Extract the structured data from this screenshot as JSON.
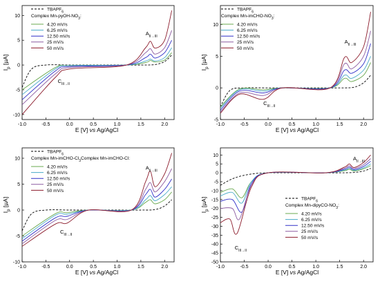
{
  "figure": {
    "x_axis_label": {
      "pre": "E [V] ",
      "italic": "vs",
      "post": " Ag/AgCl"
    }
  },
  "colors": {
    "50 mV/s": "#8b1a2a",
    "25 mV/s": "#8b5aa0",
    "12.50 mV/s": "#3030c8",
    "6.25 mV/s": "#48aac8",
    "4.20 mV/s": "#6aa84f",
    "TBAPF6": "#000000"
  },
  "chart_data": [
    {
      "type": "line",
      "panel": "top-left",
      "ylabel": "Ip [µA]",
      "xlim": [
        -1.0,
        2.2
      ],
      "ylim": [
        -11,
        12
      ],
      "x_ticks": [
        "-1.0",
        "-0.5",
        "0.0",
        "0.5",
        "1.0",
        "1.5",
        "2.0"
      ],
      "y_ticks": [
        "-10",
        "-5",
        "0",
        "5",
        "10"
      ],
      "legend": {
        "reference": "TBAPF6",
        "title": "Complex Mn-pyOH-NO3:",
        "position": "top-left"
      },
      "annotations": [
        {
          "text": "A",
          "sub": "II→III"
        },
        {
          "text": "C",
          "sub": "III→II"
        }
      ],
      "reference": {
        "name": "TBAPF6",
        "x": [
          -1.0,
          -0.8,
          -0.5,
          0.0,
          0.5,
          1.0,
          1.5,
          1.8,
          2.0,
          2.15
        ],
        "y": [
          -4.5,
          -0.8,
          0.0,
          0.0,
          0.0,
          0.0,
          0.0,
          0.1,
          0.7,
          2.0
        ]
      },
      "series": [
        {
          "name": "4.20 mV/s",
          "x": [
            -1.0,
            -0.3,
            0.0,
            1.2,
            1.6,
            1.7,
            1.8,
            2.0,
            2.15
          ],
          "y": [
            -5,
            -0.5,
            -0.1,
            0,
            0.5,
            0.9,
            0.6,
            1.0,
            2.5
          ]
        },
        {
          "name": "6.25 mV/s",
          "x": [
            -1.0,
            -0.3,
            0.0,
            1.2,
            1.6,
            1.7,
            1.8,
            2.0,
            2.15
          ],
          "y": [
            -6,
            -0.8,
            -0.1,
            0,
            0.8,
            1.2,
            0.8,
            1.5,
            3.5
          ]
        },
        {
          "name": "12.50 mV/s",
          "x": [
            -1.0,
            -0.3,
            0.0,
            1.2,
            1.6,
            1.7,
            1.8,
            2.0,
            2.15
          ],
          "y": [
            -7,
            -1.2,
            -0.3,
            0,
            1.5,
            2.2,
            1.4,
            2.5,
            5.0
          ]
        },
        {
          "name": "25 mV/s",
          "x": [
            -1.0,
            -0.3,
            0.0,
            1.2,
            1.6,
            1.7,
            1.8,
            2.0,
            2.15
          ],
          "y": [
            -8,
            -1.8,
            -0.5,
            0,
            2.5,
            3.3,
            2.2,
            3.5,
            7.0
          ]
        },
        {
          "name": "50 mV/s",
          "x": [
            -1.0,
            -0.3,
            0.0,
            1.2,
            1.6,
            1.7,
            1.8,
            2.0,
            2.15
          ],
          "y": [
            -10,
            -2.5,
            -0.8,
            0,
            3.5,
            4.8,
            3.4,
            5.0,
            11.0
          ]
        }
      ]
    },
    {
      "type": "line",
      "panel": "top-right",
      "ylabel": "Ip [µA]",
      "xlim": [
        -1.0,
        2.2
      ],
      "ylim": [
        -5,
        13
      ],
      "x_ticks": [
        "-1.0",
        "-0.5",
        "0.0",
        "0.5",
        "1.0",
        "1.5",
        "2.0"
      ],
      "y_ticks": [
        "-5",
        "0",
        "5",
        "10"
      ],
      "legend": {
        "reference": "TBAPF6",
        "title": "Complex Mn-imCHO-NO3:",
        "position": "top-left"
      },
      "annotations": [
        {
          "text": "A",
          "sub": "II→III"
        },
        {
          "text": "C",
          "sub": "III→II"
        }
      ],
      "reference": {
        "name": "TBAPF6",
        "x": [
          -1.0,
          -0.8,
          -0.5,
          0.0,
          0.5,
          1.0,
          1.5,
          1.8,
          2.0,
          2.15
        ],
        "y": [
          -3.0,
          -0.4,
          0.0,
          0.0,
          0.0,
          0.0,
          0.0,
          0.1,
          0.8,
          2.0
        ]
      },
      "series": [
        {
          "name": "4.20 mV/s",
          "x": [
            -1.0,
            -0.6,
            -0.1,
            0.3,
            1.3,
            1.6,
            1.75,
            2.0,
            2.15
          ],
          "y": [
            -3,
            -0.2,
            -0.3,
            0,
            0,
            1.5,
            1.0,
            2.0,
            4.0
          ]
        },
        {
          "name": "6.25 mV/s",
          "x": [
            -1.0,
            -0.6,
            -0.1,
            0.3,
            1.3,
            1.6,
            1.75,
            2.0,
            2.15
          ],
          "y": [
            -3.2,
            -0.3,
            -0.5,
            0,
            0,
            2.0,
            1.5,
            2.8,
            5.0
          ]
        },
        {
          "name": "12.50 mV/s",
          "x": [
            -1.0,
            -0.6,
            -0.1,
            0.3,
            1.3,
            1.6,
            1.75,
            2.0,
            2.15
          ],
          "y": [
            -3.5,
            -0.5,
            -0.8,
            0,
            0,
            2.8,
            2.3,
            3.8,
            7.0
          ]
        },
        {
          "name": "25 mV/s",
          "x": [
            -1.0,
            -0.6,
            -0.1,
            0.3,
            1.3,
            1.6,
            1.75,
            2.0,
            2.15
          ],
          "y": [
            -3.8,
            -0.8,
            -1.2,
            0,
            0,
            3.8,
            3.0,
            5.0,
            9.0
          ]
        },
        {
          "name": "50 mV/s",
          "x": [
            -1.0,
            -0.6,
            -0.1,
            0.3,
            1.3,
            1.6,
            1.75,
            2.0,
            2.15
          ],
          "y": [
            -4.0,
            -1.0,
            -1.8,
            0,
            0,
            4.8,
            4.0,
            6.5,
            12.0
          ]
        }
      ]
    },
    {
      "type": "line",
      "panel": "bottom-left",
      "ylabel": "Ip [µA]",
      "xlim": [
        -1.0,
        2.2
      ],
      "ylim": [
        -10,
        12
      ],
      "x_ticks": [
        "-1.0",
        "-0.5",
        "0.0",
        "0.5",
        "1.0",
        "1.5",
        "2.0"
      ],
      "y_ticks": [
        "-10",
        "-5",
        "0",
        "5",
        "10"
      ],
      "legend": {
        "reference": "TBAPF6",
        "title": "Complex Mn-imCHO-Cl:",
        "position": "top-left"
      },
      "annotations": [
        {
          "text": "A",
          "sub": "II→III"
        },
        {
          "text": "C",
          "sub": "III→II"
        }
      ],
      "reference": {
        "name": "TBAPF6",
        "x": [
          -1.0,
          -0.8,
          -0.5,
          0.0,
          0.5,
          1.0,
          1.5,
          1.8,
          2.0,
          2.15
        ],
        "y": [
          -4.0,
          -0.7,
          0.0,
          0.0,
          0.0,
          0.0,
          0.0,
          0.1,
          0.8,
          2.0
        ]
      },
      "series": [
        {
          "name": "4.20 mV/s",
          "x": [
            -1.0,
            -0.3,
            -0.05,
            0.4,
            1.3,
            1.6,
            1.7,
            1.8,
            2.0,
            2.15
          ],
          "y": [
            -5,
            -0.7,
            -0.5,
            0,
            0,
            1.5,
            2.0,
            1.2,
            2.0,
            3.5
          ]
        },
        {
          "name": "6.25 mV/s",
          "x": [
            -1.0,
            -0.3,
            -0.05,
            0.4,
            1.3,
            1.6,
            1.7,
            1.8,
            2.0,
            2.15
          ],
          "y": [
            -5.5,
            -1.0,
            -0.8,
            0,
            0,
            2.0,
            2.8,
            1.8,
            3.0,
            4.5
          ]
        },
        {
          "name": "12.50 mV/s",
          "x": [
            -1.0,
            -0.3,
            -0.05,
            0.4,
            1.3,
            1.6,
            1.7,
            1.8,
            2.0,
            2.15
          ],
          "y": [
            -6,
            -1.5,
            -1.2,
            0,
            0,
            3.0,
            4.0,
            2.5,
            4.0,
            6.0
          ]
        },
        {
          "name": "25 mV/s",
          "x": [
            -1.0,
            -0.3,
            -0.05,
            0.4,
            1.3,
            1.6,
            1.7,
            1.8,
            2.0,
            2.15
          ],
          "y": [
            -6.5,
            -2.0,
            -1.8,
            0,
            0,
            4.0,
            5.3,
            3.5,
            5.5,
            8.0
          ]
        },
        {
          "name": "50 mV/s",
          "x": [
            -1.0,
            -0.3,
            -0.05,
            0.4,
            1.3,
            1.6,
            1.7,
            1.8,
            2.0,
            2.15
          ],
          "y": [
            -7,
            -2.7,
            -2.5,
            0,
            0,
            5.5,
            7.5,
            4.5,
            7.0,
            11.0
          ]
        }
      ]
    },
    {
      "type": "line",
      "panel": "bottom-right",
      "ylabel": "Ip [µA]",
      "xlim": [
        -1.0,
        2.2
      ],
      "ylim": [
        -50,
        14
      ],
      "x_ticks": [
        "-1.0",
        "-0.5",
        "0.0",
        "0.5",
        "1.0",
        "1.5",
        "2.0"
      ],
      "y_ticks": [
        "-50",
        "-45",
        "-40",
        "-35",
        "-30",
        "-25",
        "-20",
        "-15",
        "-10",
        "-5",
        "0",
        "5",
        "10"
      ],
      "legend": {
        "reference": "TBAPF6",
        "title": "Complex Mn-dipyCO-NO3:",
        "position": "bottom-right"
      },
      "annotations": [
        {
          "text": "A",
          "sub": "II→III"
        },
        {
          "text": "C",
          "sub": "III→II"
        }
      ],
      "reference": {
        "name": "TBAPF6",
        "x": [
          -1.0,
          -0.8,
          -0.6,
          -0.3,
          0.0,
          0.5,
          1.0,
          1.5,
          1.8,
          2.0,
          2.15
        ],
        "y": [
          -7,
          -4,
          -2,
          -0.5,
          0,
          0,
          0,
          0,
          0.2,
          1.0,
          2.5
        ]
      },
      "series": [
        {
          "name": "4.20 mV/s",
          "x": [
            -1.0,
            -0.75,
            -0.55,
            -0.35,
            0.0,
            1.2,
            1.6,
            1.7,
            1.8,
            2.0,
            2.15
          ],
          "y": [
            -11,
            -9,
            -14,
            -5,
            0,
            0,
            1.2,
            2.0,
            1.0,
            2.2,
            4.0
          ]
        },
        {
          "name": "6.25 mV/s",
          "x": [
            -1.0,
            -0.75,
            -0.55,
            -0.35,
            0.0,
            1.2,
            1.6,
            1.7,
            1.8,
            2.0,
            2.15
          ],
          "y": [
            -13,
            -11,
            -17,
            -5,
            0,
            0,
            1.5,
            2.5,
            1.3,
            2.8,
            5.0
          ]
        },
        {
          "name": "12.50 mV/s",
          "x": [
            -1.0,
            -0.75,
            -0.55,
            -0.35,
            0.0,
            1.2,
            1.6,
            1.7,
            1.8,
            2.0,
            2.15
          ],
          "y": [
            -16,
            -15,
            -22,
            -6,
            0,
            0,
            2.0,
            3.2,
            1.8,
            3.6,
            6.5
          ]
        },
        {
          "name": "25 mV/s",
          "x": [
            -1.0,
            -0.75,
            -0.6,
            -0.35,
            0.0,
            1.2,
            1.6,
            1.7,
            1.8,
            2.0,
            2.15
          ],
          "y": [
            -20,
            -20,
            -26,
            -7,
            0,
            0,
            2.6,
            4.0,
            2.4,
            4.6,
            8.0
          ]
        },
        {
          "name": "50 mV/s",
          "x": [
            -1.0,
            -0.8,
            -0.65,
            -0.35,
            0.0,
            1.2,
            1.6,
            1.7,
            1.8,
            2.0,
            2.15
          ],
          "y": [
            -28,
            -26,
            -34,
            -8,
            0,
            0,
            3.2,
            5.0,
            3.0,
            5.8,
            10.0
          ]
        }
      ]
    }
  ]
}
